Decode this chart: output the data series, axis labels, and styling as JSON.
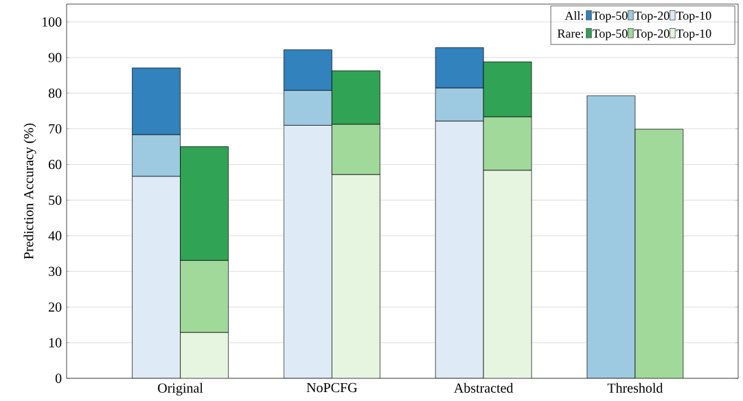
{
  "chart_data": [
    {
      "type": "bar",
      "stacked": true,
      "ylabel": "Prediction Accuracy (%)",
      "legend_title": "All:",
      "categories": [
        "Original",
        "NoPCFG",
        "Abstracted",
        "Threshold"
      ],
      "series": [
        {
          "name": "Top-10",
          "color": "#deebf7",
          "values": [
            56.7,
            71.0,
            72.2,
            null
          ]
        },
        {
          "name": "Top-20",
          "color": "#9ecae1",
          "values": [
            11.7,
            9.8,
            9.3,
            79.3
          ]
        },
        {
          "name": "Top-50",
          "color": "#3182bd",
          "values": [
            18.7,
            11.4,
            11.3,
            null
          ]
        }
      ],
      "ylim": [
        0,
        105
      ],
      "yticks": [
        0,
        10,
        20,
        30,
        40,
        50,
        60,
        70,
        80,
        90,
        100
      ],
      "grid": "y",
      "legend": "top right"
    },
    {
      "type": "bar",
      "stacked": true,
      "legend_title": "Rare:",
      "series": [
        {
          "name": "Top-10",
          "color": "#e5f5e0",
          "values": [
            12.9,
            57.2,
            58.4,
            null
          ]
        },
        {
          "name": "Top-20",
          "color": "#a1d99b",
          "values": [
            20.2,
            14.1,
            15.0,
            69.9
          ]
        },
        {
          "name": "Top-50",
          "color": "#31a354",
          "values": [
            31.9,
            15.0,
            15.4,
            null
          ]
        }
      ],
      "ylim": [
        0,
        105
      ],
      "tick_labels": false,
      "legend": "top right"
    }
  ]
}
